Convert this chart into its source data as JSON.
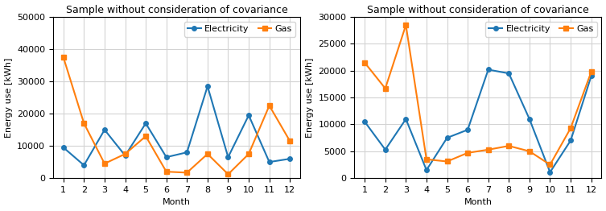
{
  "title": "Sample without consideration of covariance",
  "xlabel": "Month",
  "ylabel": "Energy use [kWh]",
  "months": [
    1,
    2,
    3,
    4,
    5,
    6,
    7,
    8,
    9,
    10,
    11,
    12
  ],
  "left": {
    "electricity": [
      9500,
      4000,
      15000,
      7000,
      17000,
      6500,
      8000,
      28500,
      6500,
      19500,
      5000,
      6000
    ],
    "gas": [
      37500,
      17000,
      4500,
      7500,
      13000,
      2000,
      1700,
      7500,
      1200,
      7500,
      22500,
      11500
    ],
    "ylim": [
      0,
      50000
    ],
    "yticks": [
      0,
      10000,
      20000,
      30000,
      40000,
      50000
    ]
  },
  "right": {
    "electricity": [
      10500,
      5300,
      11000,
      1500,
      7500,
      9000,
      20200,
      19500,
      11000,
      1100,
      7000,
      19000
    ],
    "gas": [
      21500,
      16700,
      28500,
      3500,
      3100,
      4700,
      5300,
      6000,
      5000,
      2500,
      9300,
      19800
    ],
    "ylim": [
      0,
      30000
    ],
    "yticks": [
      0,
      5000,
      10000,
      15000,
      20000,
      25000,
      30000
    ]
  },
  "electricity_color": "#1f77b4",
  "gas_color": "#ff7f0e",
  "electricity_marker": "o",
  "gas_marker": "s",
  "legend_labels": [
    "Electricity",
    "Gas"
  ],
  "title_fontsize": 9,
  "label_fontsize": 8,
  "tick_fontsize": 8,
  "legend_fontsize": 8,
  "marker_size": 4,
  "linewidth": 1.5
}
